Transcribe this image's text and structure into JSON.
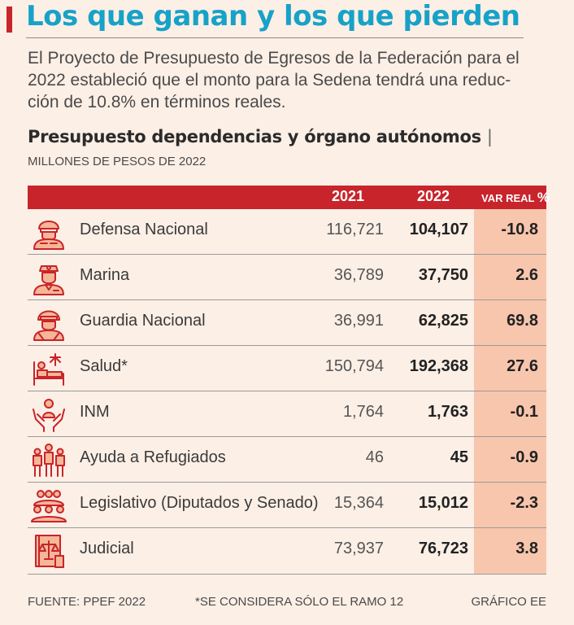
{
  "header": {
    "title": "Los que ganan y los que pierden",
    "intro_line_1": "El Proyecto de Presupuesto de Egresos de la Federación para el",
    "intro_line_2": "2022 estableció que el monto para la Sedena tendrá una reduc-",
    "intro_line_3": "ción de 10.8% en términos reales.",
    "subtitle": "Presupuesto dependencias y órgano autónomos",
    "subtitle_separator": "|",
    "units": "MILLONES DE PESOS DE 2022"
  },
  "colors": {
    "background": "#fcefe6",
    "accent_red": "#c8242b",
    "title_blue": "#17a2c7",
    "highlight_peach": "#f8c6ad"
  },
  "chart_data": {
    "type": "table",
    "title": "Presupuesto dependencias y órgano autónomos",
    "units": "MILLONES DE PESOS DE 2022",
    "columns": [
      "2021",
      "2022",
      "VAR REAL",
      "%"
    ],
    "rows": [
      {
        "name": "Defensa Nacional",
        "icon": "soldier-icon",
        "v2021": "116,721",
        "v2022": "104,107",
        "var": "-10.8"
      },
      {
        "name": "Marina",
        "icon": "sailor-icon",
        "v2021": "36,789",
        "v2022": "37,750",
        "var": "2.6"
      },
      {
        "name": "Guardia Nacional",
        "icon": "guard-icon",
        "v2021": "36,991",
        "v2022": "62,825",
        "var": "69.8"
      },
      {
        "name": "Salud*",
        "icon": "hospital-bed-icon",
        "v2021": "150,794",
        "v2022": "192,368",
        "var": "27.6"
      },
      {
        "name": "INM",
        "icon": "hands-person-icon",
        "v2021": "1,764",
        "v2022": "1,763",
        "var": "-0.1"
      },
      {
        "name": "Ayuda a Refugiados",
        "icon": "refugees-icon",
        "v2021": "46",
        "v2022": "45",
        "var": "-0.9"
      },
      {
        "name": "Legislativo (Diputados y Senado)",
        "icon": "group-people-icon",
        "v2021": "15,364",
        "v2022": "15,012",
        "var": "-2.3"
      },
      {
        "name": "Judicial",
        "icon": "justice-book-icon",
        "v2021": "73,937",
        "v2022": "76,723",
        "var": "3.8"
      }
    ]
  },
  "footer": {
    "source": "FUENTE: PPEF 2022",
    "note": "*SE CONSIDERA SÓLO EL RAMO 12",
    "credit": "GRÁFICO EE"
  }
}
